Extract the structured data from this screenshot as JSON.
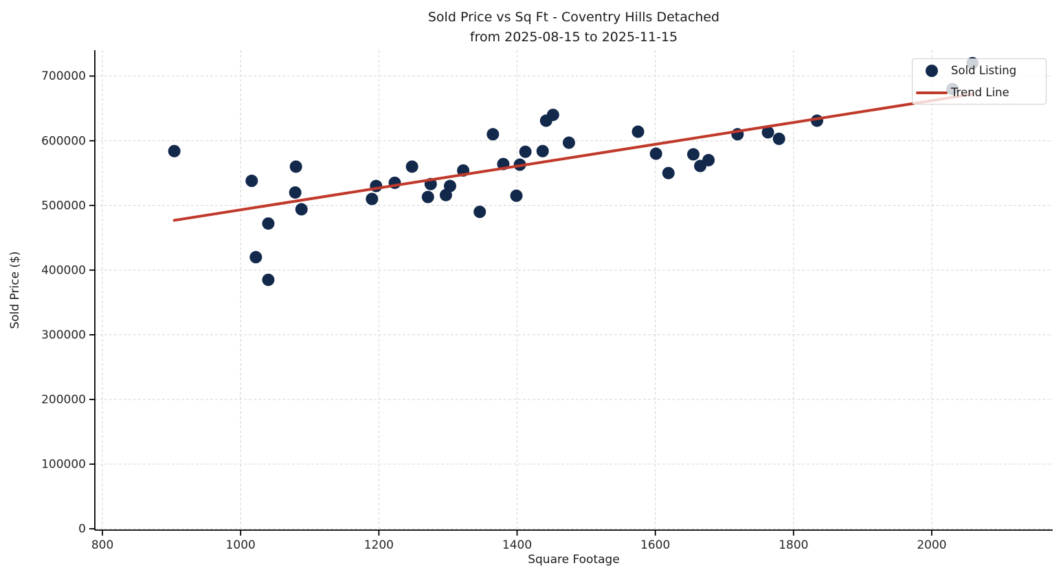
{
  "title": {
    "line1": "Sold Price vs Sq Ft - Coventry Hills Detached",
    "line2": "from 2025-08-15 to 2025-11-15"
  },
  "colors": {
    "dot": "#13294b",
    "trend": "#c0392b",
    "grid": "#d4d4d4",
    "text": "#1a1a1a"
  },
  "chart_data": {
    "type": "scatter",
    "title": "Sold Price vs Sq Ft - Coventry Hills Detached\nfrom 2025-08-15 to 2025-11-15",
    "xlabel": "Square Footage",
    "ylabel": "Sold Price ($)",
    "xlim": [
      789,
      2175
    ],
    "ylim": [
      -2000,
      740000
    ],
    "x_ticks": [
      800,
      1000,
      1200,
      1400,
      1600,
      1800,
      2000
    ],
    "y_ticks": [
      0,
      100000,
      200000,
      300000,
      400000,
      500000,
      600000,
      700000
    ],
    "grid": true,
    "legend_position": "upper right",
    "series": [
      {
        "name": "Sold Listing",
        "kind": "scatter",
        "color": "#13294b",
        "marker_radius": 9,
        "points": [
          [
            904,
            584000
          ],
          [
            1016,
            538000
          ],
          [
            1022,
            420000
          ],
          [
            1040,
            472000
          ],
          [
            1040,
            385000
          ],
          [
            1080,
            560000
          ],
          [
            1079,
            520000
          ],
          [
            1088,
            494000
          ],
          [
            1196,
            530000
          ],
          [
            1190,
            510000
          ],
          [
            1223,
            535000
          ],
          [
            1248,
            560000
          ],
          [
            1275,
            533000
          ],
          [
            1271,
            513000
          ],
          [
            1303,
            530000
          ],
          [
            1297,
            516000
          ],
          [
            1322,
            554000
          ],
          [
            1346,
            490000
          ],
          [
            1365,
            610000
          ],
          [
            1380,
            564000
          ],
          [
            1404,
            563000
          ],
          [
            1399,
            515000
          ],
          [
            1412,
            583000
          ],
          [
            1437,
            584000
          ],
          [
            1442,
            631000
          ],
          [
            1452,
            640000
          ],
          [
            1475,
            597000
          ],
          [
            1575,
            614000
          ],
          [
            1601,
            580000
          ],
          [
            1619,
            550000
          ],
          [
            1655,
            579000
          ],
          [
            1665,
            561000
          ],
          [
            1677,
            570000
          ],
          [
            1719,
            610000
          ],
          [
            1763,
            613000
          ],
          [
            1779,
            603000
          ],
          [
            1834,
            631000
          ],
          [
            2030,
            680000
          ],
          [
            2059,
            720000
          ]
        ]
      },
      {
        "name": "Trend Line",
        "kind": "line",
        "color": "#c0392b",
        "width": 4,
        "points": [
          [
            904,
            477000
          ],
          [
            2059,
            672000
          ]
        ]
      }
    ]
  }
}
